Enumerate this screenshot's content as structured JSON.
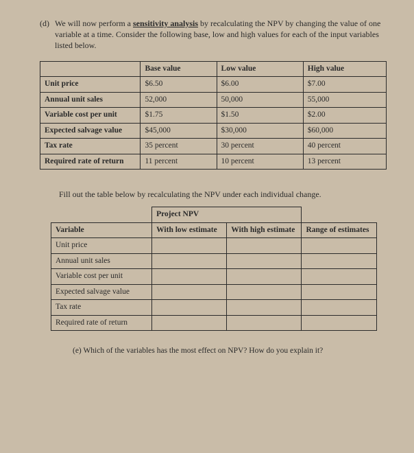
{
  "question_d": {
    "label": "(d)",
    "text_before_emph": "We will now perform a ",
    "emph": "sensitivity analysis",
    "text_after_emph": " by recalculating the NPV by changing the value of one variable at a time.  Consider the following base, low and high values for each of the input variables listed below."
  },
  "table1": {
    "headers": {
      "c0": "",
      "c1": "Base value",
      "c2": "Low value",
      "c3": "High value"
    },
    "rows": [
      {
        "c0": "Unit price",
        "c1": "$6.50",
        "c2": "$6.00",
        "c3": "$7.00"
      },
      {
        "c0": "Annual unit sales",
        "c1": "52,000",
        "c2": "50,000",
        "c3": "55,000"
      },
      {
        "c0": "Variable cost per unit",
        "c1": "$1.75",
        "c2": "$1.50",
        "c3": "$2.00"
      },
      {
        "c0": "Expected salvage value",
        "c1": "$45,000",
        "c2": "$30,000",
        "c3": "$60,000"
      },
      {
        "c0": "Tax rate",
        "c1": "35 percent",
        "c2": "30 percent",
        "c3": "40 percent"
      },
      {
        "c0": "Required rate of return",
        "c1": "11 percent",
        "c2": "10 percent",
        "c3": "13 percent"
      }
    ],
    "colwidths": [
      "29%",
      "22%",
      "25%",
      "24%"
    ]
  },
  "fill_instruction": "Fill out the table below by recalculating the NPV under each individual change.",
  "table2": {
    "super_header": "Project NPV",
    "headers": {
      "c0": "Variable",
      "c1": "With low estimate",
      "c2": "With high estimate",
      "c3": "Range of estimates"
    },
    "rows": [
      {
        "c0": "Unit price"
      },
      {
        "c0": "Annual unit sales"
      },
      {
        "c0": "Variable cost per unit"
      },
      {
        "c0": "Expected salvage value"
      },
      {
        "c0": "Tax rate"
      },
      {
        "c0": "Required rate of return"
      }
    ],
    "colwidths": [
      "31%",
      "23%",
      "23%",
      "23%"
    ]
  },
  "question_e": {
    "label": "(e)",
    "text": "Which of the variables has the most effect on NPV?  How do you explain it?"
  }
}
